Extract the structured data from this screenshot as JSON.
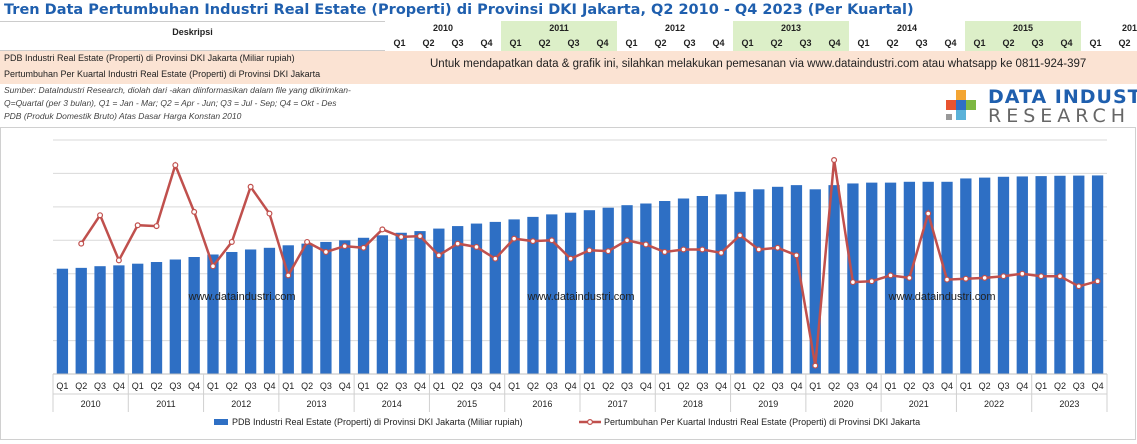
{
  "title": "Tren Data Pertumbuhan Industri Real Estate (Properti) di Provinsi DKI Jakarta, Q2 2010 - Q4 2023 (Per Kuartal)",
  "header_table": {
    "desc_label": "Deskripsi",
    "years": [
      "2010",
      "2011",
      "2012",
      "2013",
      "2014",
      "2015",
      "201"
    ],
    "quarters": [
      "Q1",
      "Q2",
      "Q3",
      "Q4",
      "Q1",
      "Q2",
      "Q3",
      "Q4",
      "Q1",
      "Q2",
      "Q3",
      "Q4",
      "Q1",
      "Q2",
      "Q3",
      "Q4",
      "Q1",
      "Q2",
      "Q3",
      "Q4",
      "Q1",
      "Q2",
      "Q3",
      "Q4",
      "Q1",
      "Q2"
    ],
    "row1": "PDB Industri Real Estate (Properti) di Provinsi DKI Jakarta (Miliar rupiah)",
    "row2": "Pertumbuhan Per Kuartal Industri Real Estate (Properti) di Provinsi DKI Jakarta",
    "notice": "Untuk mendapatkan data & grafik ini, silahkan melakukan pemesanan via www.dataindustri.com atau whatsapp ke 0811-924-397",
    "highlight_color": "#dcefc8",
    "row_color": "#fbe3d3"
  },
  "source_lines": [
    "Sumber: DataIndustri Research, diolah dari -akan diinformasikan dalam file yang dikirimkan-",
    "Q=Quartal (per 3 bulan), Q1 = Jan - Mar; Q2 = Apr - Jun; Q3 = Jul - Sep; Q4 = Okt - Des",
    "PDB (Produk Domestik Bruto) Atas Dasar Harga Konstan 2010"
  ],
  "logo": {
    "line1": "DATA INDUSTRI",
    "line2": "RESEARCH"
  },
  "watermarks": [
    "www.dataindustri.com",
    "www.dataindustri.com",
    "www.dataindustri.com"
  ],
  "colors": {
    "bar": "#2e6fc4",
    "line": "#c0504d",
    "title": "#1f5fae"
  },
  "chart_data": {
    "type": "bar",
    "categories": [
      "2010 Q1",
      "2010 Q2",
      "2010 Q3",
      "2010 Q4",
      "2011 Q1",
      "2011 Q2",
      "2011 Q3",
      "2011 Q4",
      "2012 Q1",
      "2012 Q2",
      "2012 Q3",
      "2012 Q4",
      "2013 Q1",
      "2013 Q2",
      "2013 Q3",
      "2013 Q4",
      "2014 Q1",
      "2014 Q2",
      "2014 Q3",
      "2014 Q4",
      "2015 Q1",
      "2015 Q2",
      "2015 Q3",
      "2015 Q4",
      "2016 Q1",
      "2016 Q2",
      "2016 Q3",
      "2016 Q4",
      "2017 Q1",
      "2017 Q2",
      "2017 Q3",
      "2017 Q4",
      "2018 Q1",
      "2018 Q2",
      "2018 Q3",
      "2018 Q4",
      "2019 Q1",
      "2019 Q2",
      "2019 Q3",
      "2019 Q4",
      "2020 Q1",
      "2020 Q2",
      "2020 Q3",
      "2020 Q4",
      "2021 Q1",
      "2021 Q2",
      "2021 Q3",
      "2021 Q4",
      "2022 Q1",
      "2022 Q2",
      "2022 Q3",
      "2022 Q4",
      "2023 Q1",
      "2023 Q2",
      "2023 Q3",
      "2023 Q4"
    ],
    "quarter_labels": [
      "Q1",
      "Q2",
      "Q3",
      "Q4"
    ],
    "year_labels": [
      "2010",
      "2011",
      "2012",
      "2013",
      "2014",
      "2015",
      "2016",
      "2017",
      "2018",
      "2019",
      "2020",
      "2021",
      "2022",
      "2023"
    ],
    "series": [
      {
        "name": "PDB Industri Real Estate (Properti) di Provinsi DKI Jakarta (Miliar rupiah)",
        "kind": "bar",
        "values": [
          6.3,
          6.35,
          6.45,
          6.5,
          6.6,
          6.7,
          6.85,
          7.0,
          7.15,
          7.3,
          7.45,
          7.55,
          7.7,
          7.8,
          7.9,
          8.0,
          8.15,
          8.3,
          8.45,
          8.55,
          8.7,
          8.85,
          9.0,
          9.1,
          9.25,
          9.4,
          9.55,
          9.65,
          9.8,
          9.95,
          10.1,
          10.2,
          10.35,
          10.5,
          10.65,
          10.75,
          10.9,
          11.05,
          11.2,
          11.3,
          11.05,
          11.3,
          11.4,
          11.45,
          11.45,
          11.5,
          11.5,
          11.5,
          11.7,
          11.75,
          11.8,
          11.82,
          11.84,
          11.86,
          11.87,
          11.88
        ]
      },
      {
        "name": "Pertumbuhan Per Kuartal Industri Real Estate (Properti) di Provinsi DKI Jakarta",
        "kind": "line",
        "values": [
          null,
          7.8,
          9.5,
          6.8,
          8.9,
          8.85,
          12.5,
          9.7,
          6.45,
          7.9,
          11.2,
          9.6,
          5.9,
          7.9,
          7.3,
          7.65,
          7.55,
          8.65,
          8.2,
          8.25,
          7.1,
          7.8,
          7.6,
          6.9,
          8.1,
          7.95,
          8.0,
          6.9,
          7.4,
          7.35,
          8.0,
          7.75,
          7.3,
          7.45,
          7.45,
          7.25,
          8.3,
          7.45,
          7.55,
          7.1,
          0.5,
          12.8,
          5.5,
          5.55,
          5.9,
          5.75,
          9.6,
          5.65,
          5.7,
          5.75,
          5.85,
          6.0,
          5.85,
          5.85,
          5.25,
          5.55
        ]
      }
    ],
    "ylim": [
      0,
      14
    ],
    "grid": true,
    "legend_position": "bottom"
  }
}
